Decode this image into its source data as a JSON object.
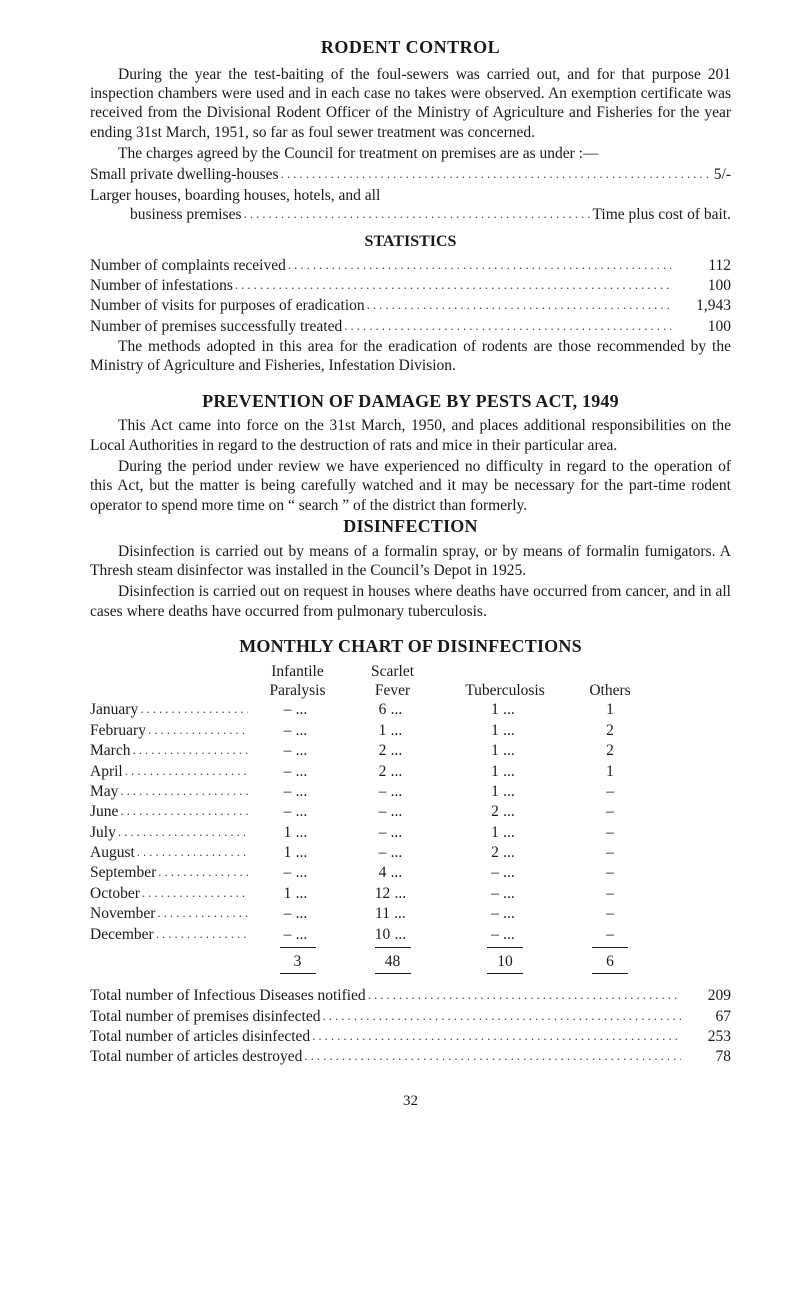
{
  "title": "RODENT CONTROL",
  "para1": "During the year the test-baiting of the foul-sewers was carried out, and for that purpose 201 inspection chambers were used and in each case no takes were observed. An exemption certificate was received from the Divisional Rodent Officer of the Ministry of Agriculture and Fisheries for the year ending 31st March, 1951, so far as foul sewer treatment was concerned.",
  "para2": "The charges agreed by the Council for treatment on premises are as under :—",
  "charge_lines": [
    {
      "left": "Small private dwelling-houses",
      "right": "5/-"
    },
    {
      "left": "Larger houses, boarding houses, hotels, and all",
      "right": ""
    },
    {
      "left_indent": "business premises",
      "right": "Time plus cost of bait."
    }
  ],
  "stats_heading": "STATISTICS",
  "stats": [
    {
      "label": "Number of complaints received",
      "value": "112"
    },
    {
      "label": "Number of infestations",
      "value": "100"
    },
    {
      "label": "Number of visits for purposes of eradication",
      "value": "1,943"
    },
    {
      "label": "Number of premises successfully treated",
      "value": "100"
    }
  ],
  "para3": "The methods adopted in this area for the eradication of rodents are those recommended by the Ministry of Agriculture and Fisheries, Infestation Division.",
  "prev_heading": "PREVENTION OF DAMAGE BY PESTS ACT, 1949",
  "para4": "This Act came into force on the 31st March, 1950, and places additional responsibilities on the Local Authorities in regard to the destruction of rats and mice in their particular area.",
  "para5": "During the period under review we have experienced no difficulty in regard to the operation of this Act, but the matter is being carefully watched and it may be necessary for the part-time rodent operator to spend more time on “ search ” of the district than formerly.",
  "disinf_heading": "DISINFECTION",
  "para6": "Disinfection is carried out by means of a formalin spray, or by means of formalin fumigators. A Thresh steam disinfector was installed in the Council’s Depot in 1925.",
  "para7": "Disinfection is carried out on request in houses where deaths have occurred from cancer, and in all cases where deaths have occurred from pulmonary tuberculosis.",
  "chart_heading": "MONTHLY CHART OF DISINFECTIONS",
  "cols": {
    "ip1": "Infantile",
    "ip2": "Paralysis",
    "sf1": "Scarlet",
    "sf2": "Fever",
    "tb": "Tuberculosis",
    "ot": "Others"
  },
  "months": [
    {
      "m": "January",
      "ip": "–",
      "sf": "6",
      "tb": "1",
      "ot": "1"
    },
    {
      "m": "February",
      "ip": "–",
      "sf": "1",
      "tb": "1",
      "ot": "2"
    },
    {
      "m": "March",
      "ip": "–",
      "sf": "2",
      "tb": "1",
      "ot": "2"
    },
    {
      "m": "April",
      "ip": "–",
      "sf": "2",
      "tb": "1",
      "ot": "1"
    },
    {
      "m": "May",
      "ip": "–",
      "sf": "–",
      "tb": "1",
      "ot": "–"
    },
    {
      "m": "June",
      "ip": "–",
      "sf": "–",
      "tb": "2",
      "ot": "–"
    },
    {
      "m": "July",
      "ip": "1",
      "sf": "–",
      "tb": "1",
      "ot": "–"
    },
    {
      "m": "August",
      "ip": "1",
      "sf": "–",
      "tb": "2",
      "ot": "–"
    },
    {
      "m": "September",
      "ip": "–",
      "sf": "4",
      "tb": "–",
      "ot": "–"
    },
    {
      "m": "October",
      "ip": "1",
      "sf": "12",
      "tb": "–",
      "ot": "–"
    },
    {
      "m": "November",
      "ip": "–",
      "sf": "11",
      "tb": "–",
      "ot": "–"
    },
    {
      "m": "December",
      "ip": "–",
      "sf": "10",
      "tb": "–",
      "ot": "–"
    }
  ],
  "totals_row": {
    "ip": "3",
    "sf": "48",
    "tb": "10",
    "ot": "6"
  },
  "final_totals": [
    {
      "label": "Total number of Infectious Diseases notified",
      "value": "209"
    },
    {
      "label": "Total number of premises disinfected",
      "value": "67"
    },
    {
      "label": "Total number of articles disinfected",
      "value": "253"
    },
    {
      "label": "Total number of articles destroyed",
      "value": "78"
    }
  ],
  "page_number": "32"
}
